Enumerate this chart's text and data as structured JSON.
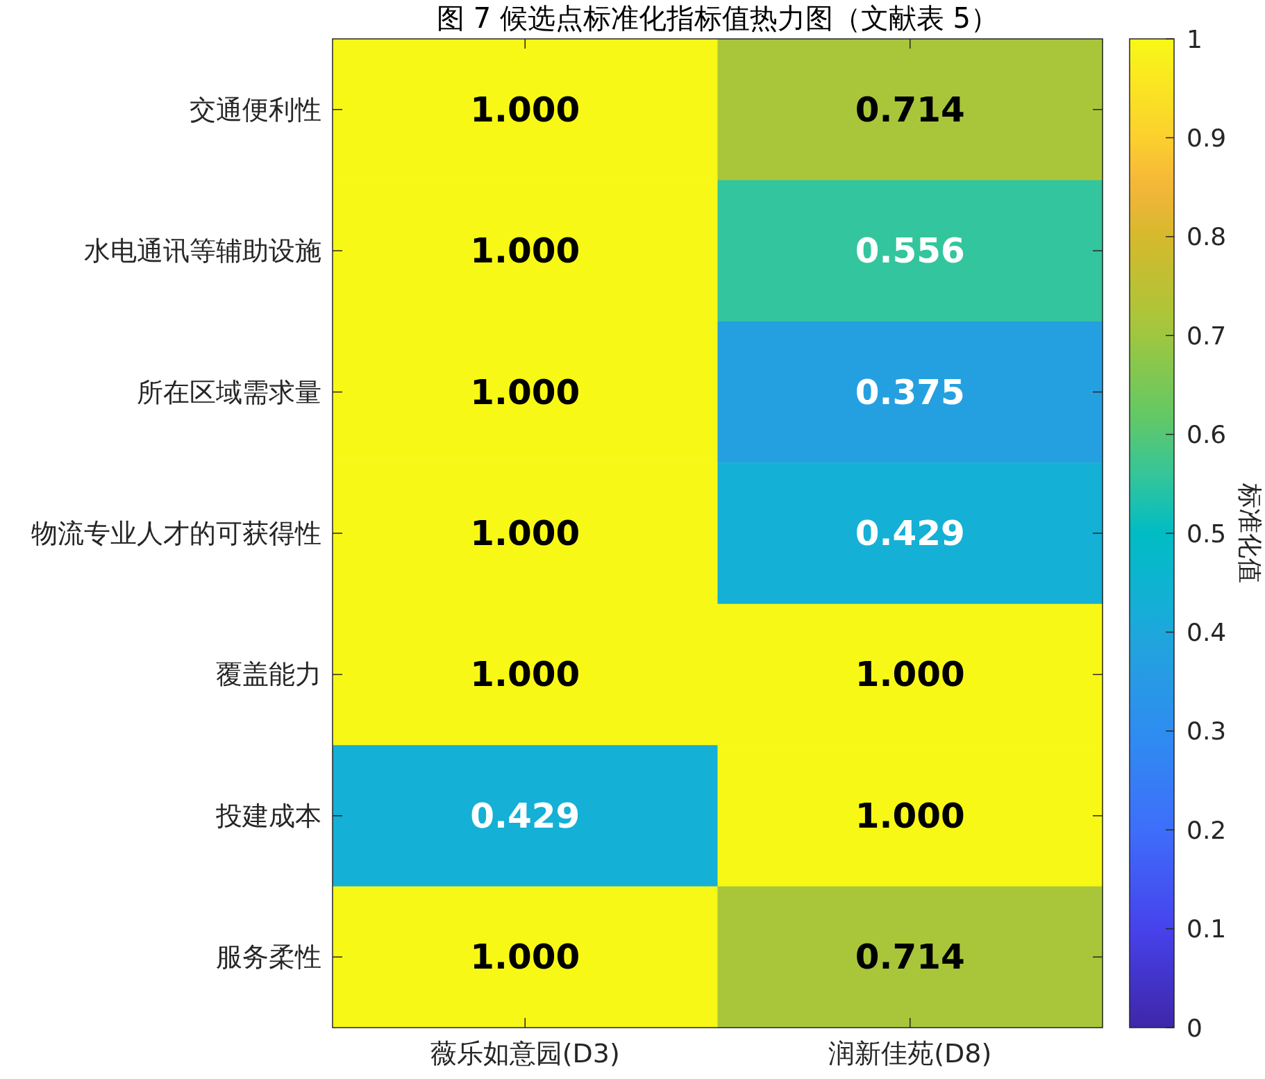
{
  "chart_data": {
    "type": "heatmap",
    "title": "图 7  候选点标准化指标值热力图（文献表 5）",
    "categories": [
      "薇乐如意园(D3)",
      "润新佳苑(D8)"
    ],
    "y_categories": [
      "交通便利性",
      "水电通讯等辅助设施",
      "所在区域需求量",
      "物流专业人才的可获得性",
      "覆盖能力",
      "投建成本",
      "服务柔性"
    ],
    "cells": [
      [
        1,
        0.714
      ],
      [
        1,
        0.556
      ],
      [
        1,
        0.375
      ],
      [
        1,
        0.429
      ],
      [
        1,
        1
      ],
      [
        0.429,
        1
      ],
      [
        1,
        0.714
      ]
    ],
    "cell_labels": [
      [
        "1.000",
        "0.714"
      ],
      [
        "1.000",
        "0.556"
      ],
      [
        "1.000",
        "0.375"
      ],
      [
        "1.000",
        "0.429"
      ],
      [
        "1.000",
        "1.000"
      ],
      [
        "0.429",
        "1.000"
      ],
      [
        "1.000",
        "0.714"
      ]
    ],
    "clabel": "标准化值",
    "clim": [
      0,
      1
    ],
    "cticks": [
      0,
      0.1,
      0.2,
      0.3,
      0.4,
      0.5,
      0.6,
      0.7,
      0.8,
      0.9,
      1
    ]
  }
}
